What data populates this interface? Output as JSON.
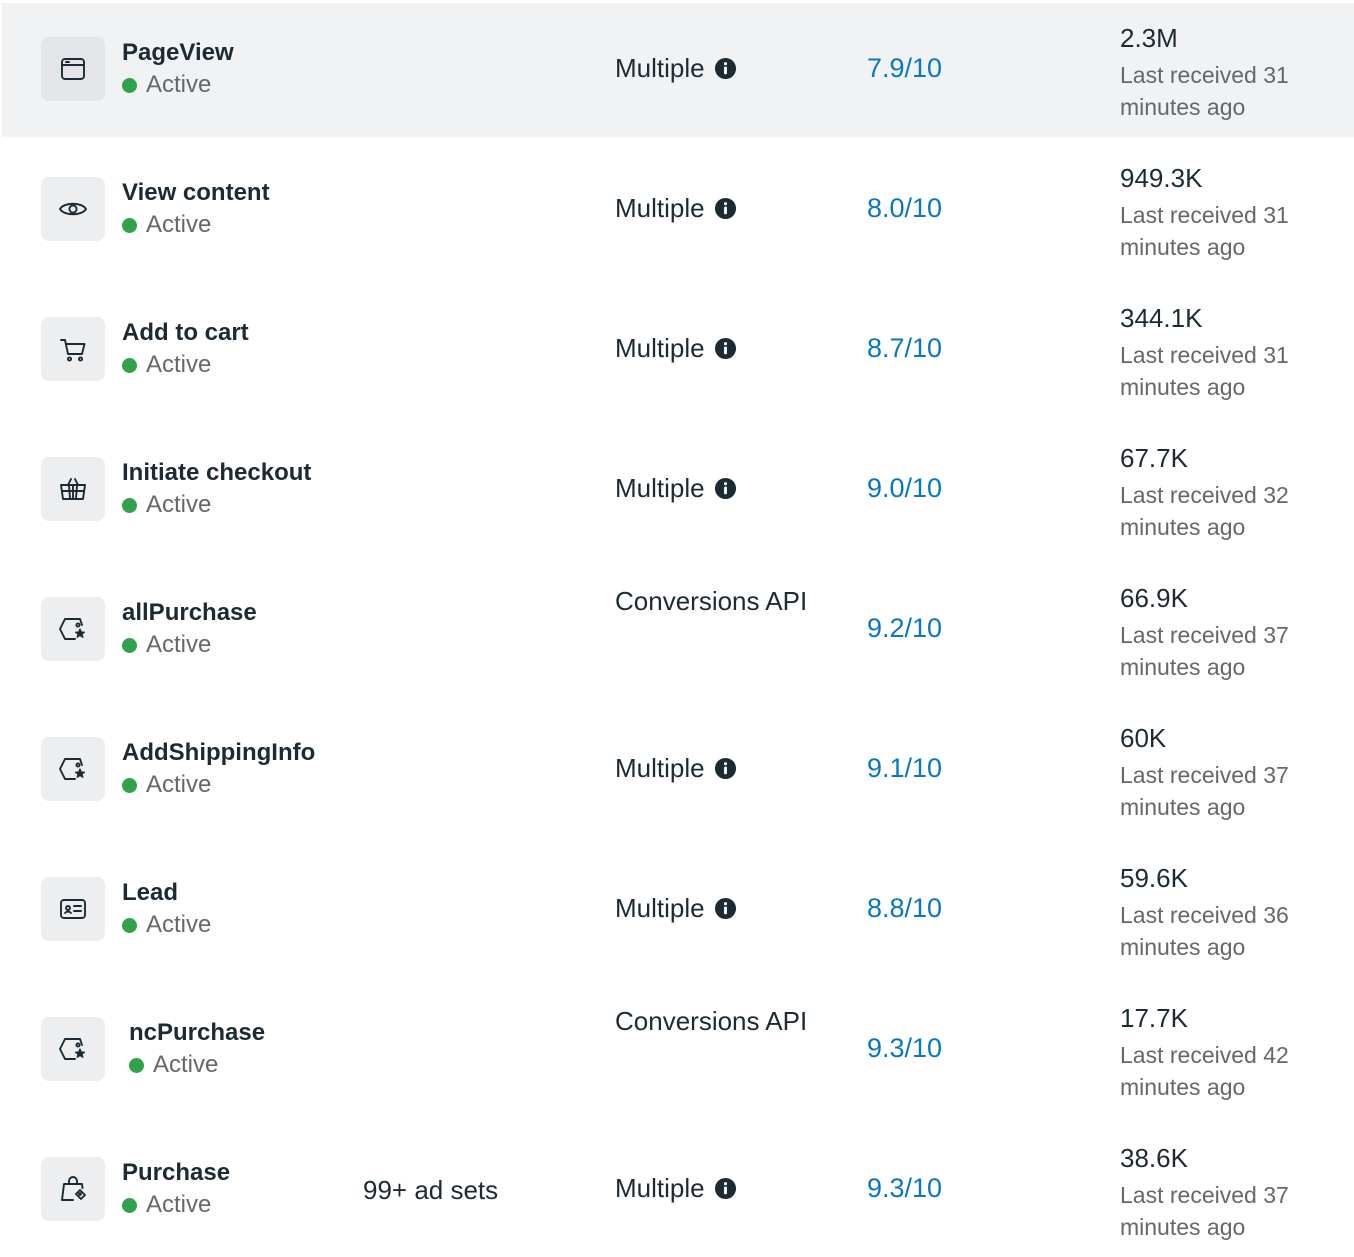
{
  "events": [
    {
      "name": "PageView",
      "status": "Active",
      "icon": "browser-window-icon",
      "ad_sets": "",
      "source": "Multiple",
      "source_info": true,
      "score": "7.9/10",
      "count": "2.3M",
      "last_received": "Last received 31 minutes ago",
      "hovered": true
    },
    {
      "name": "View content",
      "status": "Active",
      "icon": "eye-icon",
      "ad_sets": "",
      "source": "Multiple",
      "source_info": true,
      "score": "8.0/10",
      "count": "949.3K",
      "last_received": "Last received 31 minutes ago"
    },
    {
      "name": "Add to cart",
      "status": "Active",
      "icon": "shopping-cart-icon",
      "ad_sets": "",
      "source": "Multiple",
      "source_info": true,
      "score": "8.7/10",
      "count": "344.1K",
      "last_received": "Last received 31 minutes ago"
    },
    {
      "name": "Initiate checkout",
      "status": "Active",
      "icon": "shopping-basket-icon",
      "ad_sets": "",
      "source": "Multiple",
      "source_info": true,
      "score": "9.0/10",
      "count": "67.7K",
      "last_received": "Last received 32 minutes ago"
    },
    {
      "name": "allPurchase",
      "status": "Active",
      "icon": "tag-star-icon",
      "ad_sets": "",
      "source": "Conversions API",
      "source_info": false,
      "score": "9.2/10",
      "count": "66.9K",
      "last_received": "Last received 37 minutes ago"
    },
    {
      "name": "AddShippingInfo",
      "status": "Active",
      "icon": "tag-star-icon",
      "ad_sets": "",
      "source": "Multiple",
      "source_info": true,
      "score": "9.1/10",
      "count": "60K",
      "last_received": "Last received 37 minutes ago"
    },
    {
      "name": "Lead",
      "status": "Active",
      "icon": "id-card-icon",
      "ad_sets": "",
      "source": "Multiple",
      "source_info": true,
      "score": "8.8/10",
      "count": "59.6K",
      "last_received": "Last received 36 minutes ago"
    },
    {
      "name": "ncPurchase",
      "status": "Active",
      "icon": "tag-star-icon",
      "ad_sets": "",
      "source": "Conversions API",
      "source_info": false,
      "score": "9.3/10",
      "count": "17.7K",
      "last_received": "Last received 42 minutes ago",
      "offset": true
    },
    {
      "name": "Purchase",
      "status": "Active",
      "icon": "shopping-bag-tag-icon",
      "ad_sets": "99+ ad sets",
      "source": "Multiple",
      "source_info": true,
      "score": "9.3/10",
      "count": "38.6K",
      "last_received": "Last received 37 minutes ago"
    }
  ],
  "colors": {
    "active_dot": "#31a24c",
    "score_link": "#0a78be",
    "hover_row": "#f1f2f3",
    "icon_tile": "#eceef0"
  }
}
